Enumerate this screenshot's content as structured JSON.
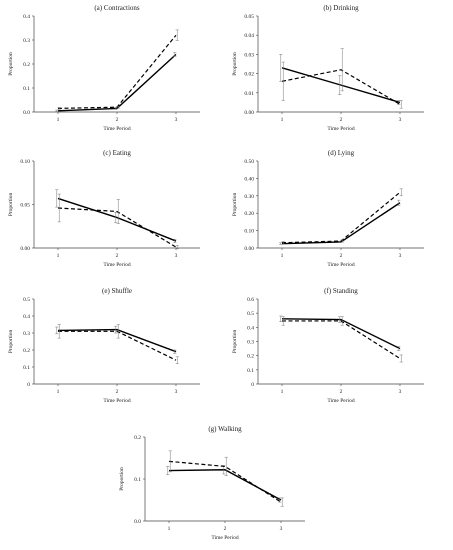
{
  "chart_data": [
    {
      "type": "line",
      "title": "(a) Contractions",
      "xlabel": "Time Period",
      "ylabel": "Proportion",
      "categories": [
        "1",
        "2",
        "3"
      ],
      "ylim": [
        0,
        0.4
      ],
      "yticks": [
        "0.0",
        "0.1",
        "0.2",
        "0.3",
        "0.4"
      ],
      "series": [
        {
          "style": "solid",
          "values": [
            0.005,
            0.015,
            0.24
          ],
          "errors": [
            0.003,
            0.004,
            0.008
          ]
        },
        {
          "style": "dashed",
          "values": [
            0.015,
            0.02,
            0.32
          ],
          "errors": [
            0.004,
            0.004,
            0.022
          ]
        }
      ]
    },
    {
      "type": "line",
      "title": "(b) Drinking",
      "xlabel": "Time Period",
      "ylabel": "Proportion",
      "categories": [
        "1",
        "2",
        "3"
      ],
      "ylim": [
        0,
        0.05
      ],
      "yticks": [
        "0.00",
        "0.01",
        "0.02",
        "0.03",
        "0.04",
        "0.05"
      ],
      "series": [
        {
          "style": "solid",
          "values": [
            0.023,
            0.014,
            0.005
          ],
          "errors": [
            0.007,
            0.005,
            0.001
          ]
        },
        {
          "style": "dashed",
          "values": [
            0.016,
            0.022,
            0.004
          ],
          "errors": [
            0.01,
            0.011,
            0.002
          ]
        }
      ]
    },
    {
      "type": "line",
      "title": "(c) Eating",
      "xlabel": "Time Period",
      "ylabel": "Proportion",
      "categories": [
        "1",
        "2",
        "3"
      ],
      "ylim": [
        0,
        0.1
      ],
      "yticks": [
        "0.00",
        "0.05",
        "0.10"
      ],
      "series": [
        {
          "style": "solid",
          "values": [
            0.057,
            0.035,
            0.008
          ],
          "errors": [
            0.01,
            0.006,
            0.002
          ]
        },
        {
          "style": "dashed",
          "values": [
            0.046,
            0.042,
            0.001
          ],
          "errors": [
            0.016,
            0.014,
            0.002
          ]
        }
      ]
    },
    {
      "type": "line",
      "title": "(d) Lying",
      "xlabel": "Time Period",
      "ylabel": "Proportion",
      "categories": [
        "1",
        "2",
        "3"
      ],
      "ylim": [
        0,
        0.5
      ],
      "yticks": [
        "0.00",
        "0.10",
        "0.20",
        "0.30",
        "0.40",
        "0.50"
      ],
      "series": [
        {
          "style": "solid",
          "values": [
            0.025,
            0.035,
            0.26
          ],
          "errors": [
            0.005,
            0.004,
            0.015
          ]
        },
        {
          "style": "dashed",
          "values": [
            0.03,
            0.04,
            0.32
          ],
          "errors": [
            0.008,
            0.006,
            0.02
          ]
        }
      ]
    },
    {
      "type": "line",
      "title": "(e) Shuffle",
      "xlabel": "Time Period",
      "ylabel": "Proportion",
      "categories": [
        "1",
        "2",
        "3"
      ],
      "ylim": [
        0,
        0.5
      ],
      "yticks": [
        "0",
        "0.1",
        "0.2",
        "0.3",
        "0.4",
        "0.5"
      ],
      "series": [
        {
          "style": "solid",
          "values": [
            0.315,
            0.32,
            0.19
          ],
          "errors": [
            0.02,
            0.02,
            0.01
          ]
        },
        {
          "style": "dashed",
          "values": [
            0.31,
            0.31,
            0.14
          ],
          "errors": [
            0.04,
            0.04,
            0.02
          ]
        }
      ]
    },
    {
      "type": "line",
      "title": "(f) Standing",
      "xlabel": "Time Period",
      "ylabel": "Proportion",
      "categories": [
        "1",
        "2",
        "3"
      ],
      "ylim": [
        0,
        0.6
      ],
      "yticks": [
        "0",
        "0.1",
        "0.2",
        "0.3",
        "0.4",
        "0.5",
        "0.6"
      ],
      "series": [
        {
          "style": "solid",
          "values": [
            0.46,
            0.455,
            0.25
          ],
          "errors": [
            0.02,
            0.02,
            0.015
          ]
        },
        {
          "style": "dashed",
          "values": [
            0.445,
            0.445,
            0.18
          ],
          "errors": [
            0.03,
            0.03,
            0.025
          ]
        }
      ]
    },
    {
      "type": "line",
      "title": "(g) Walking",
      "xlabel": "Time Period",
      "ylabel": "Proportion",
      "categories": [
        "1",
        "2",
        "3"
      ],
      "ylim": [
        0,
        0.2
      ],
      "yticks": [
        "0.0",
        "0.1",
        "0.2"
      ],
      "series": [
        {
          "style": "solid",
          "values": [
            0.12,
            0.122,
            0.05
          ],
          "errors": [
            0.01,
            0.01,
            0.005
          ]
        },
        {
          "style": "dashed",
          "values": [
            0.142,
            0.13,
            0.045
          ],
          "errors": [
            0.025,
            0.022,
            0.01
          ]
        }
      ]
    }
  ]
}
